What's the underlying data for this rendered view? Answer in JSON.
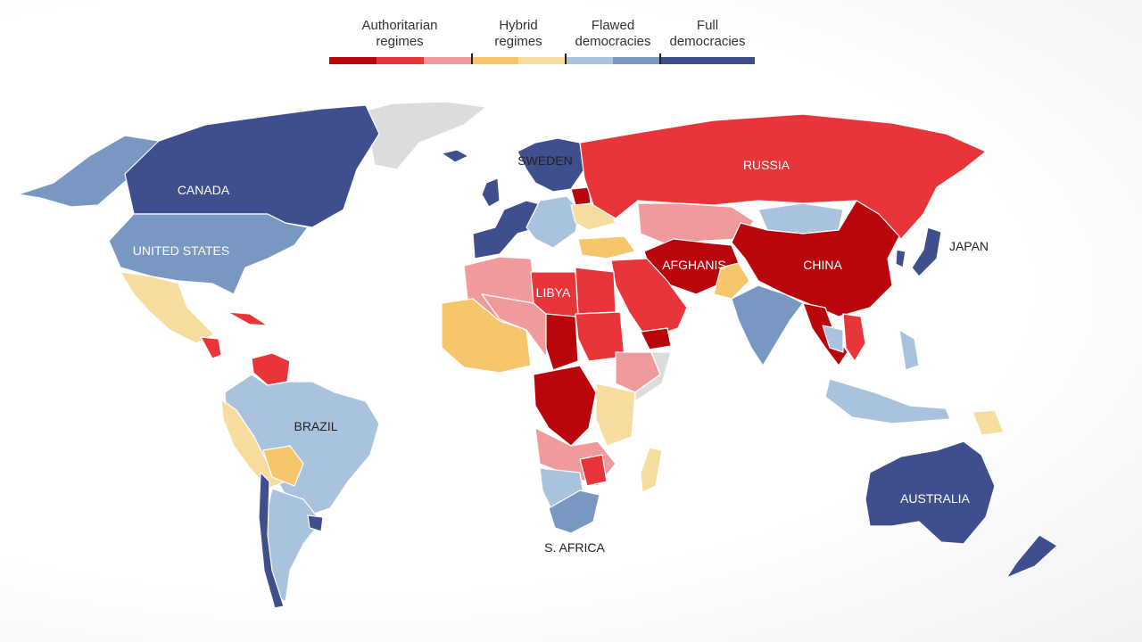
{
  "legend": {
    "categories": [
      {
        "label": "Authoritarian\nregimes",
        "colors": [
          "#b8060c",
          "#e8353a",
          "#ef9a9b"
        ]
      },
      {
        "label": "Hybrid\nregimes",
        "colors": [
          "#f5c66b",
          "#f7dca0"
        ]
      },
      {
        "label": "Flawed\ndemocracies",
        "colors": [
          "#a9c2de",
          "#7898c2"
        ]
      },
      {
        "label": "Full\ndemocracies",
        "colors": [
          "#3f4e8c"
        ]
      }
    ]
  },
  "colors": {
    "authoritarian_dark": "#b8060c",
    "authoritarian_mid": "#e8353a",
    "authoritarian_light": "#ef9a9b",
    "hybrid_dark": "#f5c66b",
    "hybrid_light": "#f7dca0",
    "flawed_light": "#a9c2de",
    "flawed_dark": "#7898c2",
    "full": "#3f4e8c",
    "no_data": "#dcdcdc"
  },
  "labels": {
    "canada": "CANADA",
    "united_states": "UNITED STATES",
    "brazil": "BRAZIL",
    "sweden": "SWEDEN",
    "russia": "RUSSIA",
    "libya": "LIBYA",
    "afghanistan": "AFGHANIS",
    "china": "CHINA",
    "japan": "JAPAN",
    "south_africa": "S. AFRICA",
    "australia": "AUSTRALIA"
  }
}
